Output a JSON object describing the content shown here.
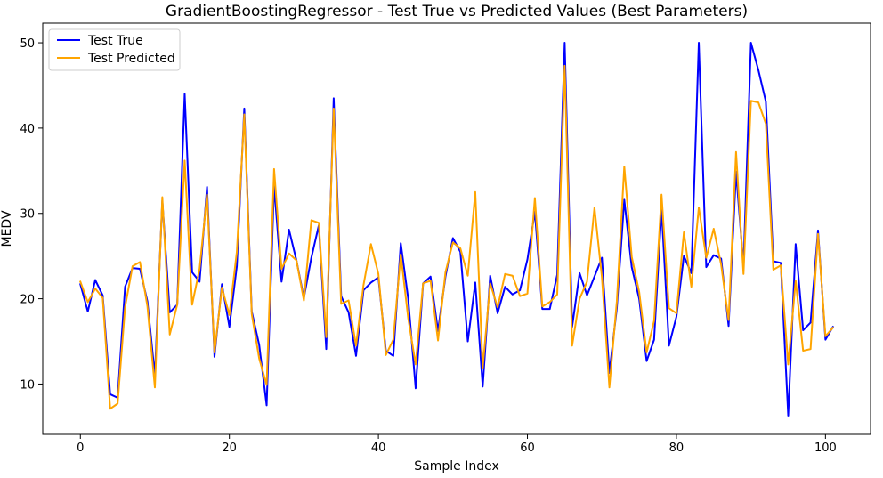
{
  "chart_data": {
    "type": "line",
    "title": "GradientBoostingRegressor - Test True vs Predicted Values (Best Parameters)",
    "xlabel": "Sample Index",
    "ylabel": "MEDV",
    "xlim": [
      -5.05,
      106.05
    ],
    "ylim": [
      4.1,
      52.3
    ],
    "xticks": [
      0,
      20,
      40,
      60,
      80,
      100
    ],
    "yticks": [
      10,
      20,
      30,
      40,
      50
    ],
    "grid": false,
    "legend_position": "top-left",
    "series": [
      {
        "name": "Test True",
        "color": "#0000ff",
        "values": [
          21.7,
          18.5,
          22.2,
          20.4,
          8.8,
          8.4,
          21.4,
          23.6,
          23.5,
          19.7,
          11.0,
          31.5,
          18.4,
          19.3,
          44.0,
          23.1,
          22.0,
          33.1,
          13.2,
          21.7,
          16.7,
          23.8,
          42.3,
          18.5,
          14.6,
          7.5,
          33.3,
          22.0,
          28.1,
          24.5,
          20.1,
          24.8,
          28.6,
          14.1,
          43.5,
          20.3,
          18.4,
          13.3,
          21.0,
          21.9,
          22.5,
          13.9,
          13.3,
          26.5,
          20.0,
          9.5,
          21.8,
          22.6,
          16.2,
          22.6,
          27.1,
          25.5,
          15.0,
          21.9,
          9.7,
          22.7,
          18.3,
          21.4,
          20.5,
          21.0,
          24.6,
          30.2,
          18.8,
          18.8,
          22.8,
          50.0,
          16.7,
          23.0,
          20.4,
          22.6,
          24.8,
          11.3,
          18.9,
          31.6,
          23.7,
          20.0,
          12.7,
          15.2,
          30.5,
          14.5,
          17.9,
          25.0,
          23.0,
          50.0,
          23.7,
          25.1,
          24.7,
          16.8,
          34.9,
          23.8,
          50.0,
          46.8,
          43.1,
          24.4,
          24.2,
          6.3,
          26.4,
          16.3,
          17.2,
          28.0,
          15.2,
          16.7
        ]
      },
      {
        "name": "Test Predicted",
        "color": "#ffa500",
        "values": [
          22.0,
          19.6,
          21.2,
          20.1,
          7.1,
          7.7,
          19.0,
          23.8,
          24.3,
          19.1,
          9.6,
          31.9,
          15.8,
          19.3,
          36.2,
          19.3,
          23.5,
          32.2,
          13.7,
          21.3,
          18.1,
          25.5,
          41.6,
          18.2,
          13.0,
          9.9,
          35.2,
          23.5,
          25.3,
          24.5,
          19.8,
          29.2,
          28.9,
          15.5,
          42.3,
          19.4,
          19.8,
          14.5,
          21.6,
          26.4,
          22.9,
          13.4,
          15.2,
          25.2,
          17.7,
          12.3,
          21.8,
          22.1,
          15.1,
          23.1,
          26.6,
          25.9,
          22.7,
          32.5,
          11.9,
          21.8,
          19.0,
          22.9,
          22.7,
          20.3,
          20.6,
          31.8,
          19.1,
          19.6,
          20.5,
          47.3,
          14.5,
          20.0,
          22.0,
          30.7,
          22.5,
          9.6,
          19.7,
          35.5,
          24.9,
          20.8,
          13.7,
          17.4,
          32.2,
          18.9,
          18.3,
          27.8,
          21.4,
          30.7,
          24.8,
          28.2,
          24.0,
          17.5,
          37.2,
          22.9,
          43.2,
          43.0,
          40.5,
          23.4,
          23.9,
          12.3,
          22.1,
          13.9,
          14.1,
          27.6,
          15.6,
          16.6
        ]
      }
    ]
  }
}
